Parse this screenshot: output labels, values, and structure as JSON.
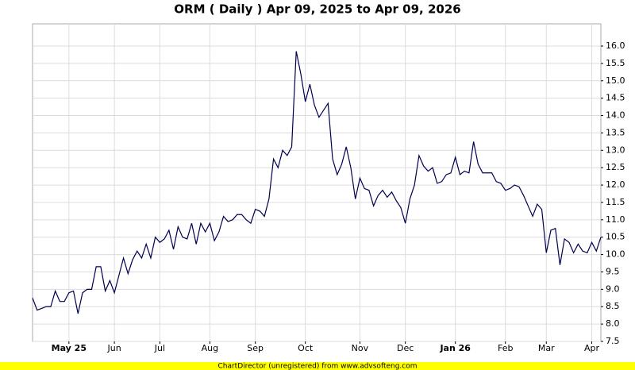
{
  "chart_data": {
    "type": "line",
    "title": "ORM ( Daily ) Apr 09, 2025 to Apr 09, 2026",
    "categories": [
      null,
      null,
      null,
      null,
      null,
      null,
      null,
      null,
      "May 25",
      null,
      null,
      null,
      null,
      null,
      null,
      null,
      null,
      null,
      "Jun",
      null,
      null,
      null,
      null,
      null,
      null,
      null,
      null,
      null,
      "Jul",
      null,
      null,
      null,
      null,
      null,
      null,
      null,
      null,
      null,
      null,
      "Aug",
      null,
      null,
      null,
      null,
      null,
      null,
      null,
      null,
      null,
      "Sep",
      null,
      null,
      null,
      null,
      null,
      null,
      null,
      null,
      null,
      null,
      "Oct",
      null,
      null,
      null,
      null,
      null,
      null,
      null,
      null,
      null,
      null,
      null,
      "Nov",
      null,
      null,
      null,
      null,
      null,
      null,
      null,
      null,
      null,
      "Dec",
      null,
      null,
      null,
      null,
      null,
      null,
      null,
      null,
      null,
      null,
      "Jan 26",
      null,
      null,
      null,
      null,
      null,
      null,
      null,
      null,
      null,
      null,
      "Feb",
      null,
      null,
      null,
      null,
      null,
      null,
      null,
      null,
      "Mar",
      null,
      null,
      null,
      null,
      null,
      null,
      null,
      null,
      null,
      "Apr",
      null,
      null
    ],
    "series": [
      {
        "name": "ORM",
        "color": "#000050",
        "values": [
          8.75,
          8.4,
          8.45,
          8.5,
          8.5,
          8.95,
          8.65,
          8.65,
          8.9,
          8.95,
          8.3,
          8.9,
          9.0,
          9.0,
          9.65,
          9.65,
          8.95,
          9.25,
          8.9,
          9.4,
          9.9,
          9.45,
          9.85,
          10.1,
          9.9,
          10.3,
          9.9,
          10.5,
          10.35,
          10.45,
          10.7,
          10.15,
          10.8,
          10.5,
          10.45,
          10.9,
          10.3,
          10.9,
          10.65,
          10.9,
          10.4,
          10.65,
          11.1,
          10.95,
          11.0,
          11.15,
          11.15,
          11.0,
          10.9,
          11.3,
          11.25,
          11.1,
          11.6,
          12.75,
          12.5,
          13.0,
          12.85,
          13.1,
          15.85,
          15.2,
          14.4,
          14.9,
          14.3,
          13.95,
          14.15,
          14.35,
          12.75,
          12.3,
          12.6,
          13.1,
          12.5,
          11.6,
          12.2,
          11.9,
          11.85,
          11.4,
          11.7,
          11.85,
          11.65,
          11.8,
          11.55,
          11.35,
          10.9,
          11.6,
          12.0,
          12.85,
          12.55,
          12.4,
          12.5,
          12.05,
          12.1,
          12.3,
          12.35,
          12.8,
          12.3,
          12.4,
          12.35,
          13.25,
          12.6,
          12.35,
          12.35,
          12.35,
          12.1,
          12.05,
          11.85,
          11.9,
          12.0,
          11.95,
          11.7,
          11.4,
          11.1,
          11.45,
          11.3,
          10.05,
          10.7,
          10.75,
          9.7,
          10.45,
          10.35,
          10.05,
          10.3,
          10.1,
          10.05,
          10.35,
          10.1,
          10.5
        ]
      }
    ],
    "ylim": [
      7.5,
      16.64
    ],
    "yticks": [
      7.5,
      {
        "value": 8,
        "label": "8.0"
      },
      8.5,
      {
        "value": 9,
        "label": "9.0"
      },
      9.5,
      {
        "value": 10,
        "label": "10.0"
      },
      10.5,
      {
        "value": 11,
        "label": "11.0"
      },
      11.5,
      {
        "value": 12,
        "label": "12.0"
      },
      12.5,
      {
        "value": 13,
        "label": "13.0"
      },
      13.5,
      {
        "value": 14,
        "label": "14.0"
      },
      14.5,
      {
        "value": 15,
        "label": "15.0"
      },
      15.5,
      {
        "value": 16,
        "label": "16.0"
      }
    ],
    "grid": true
  },
  "footer": "ChartDirector (unregistered) from www.advsofteng.com"
}
